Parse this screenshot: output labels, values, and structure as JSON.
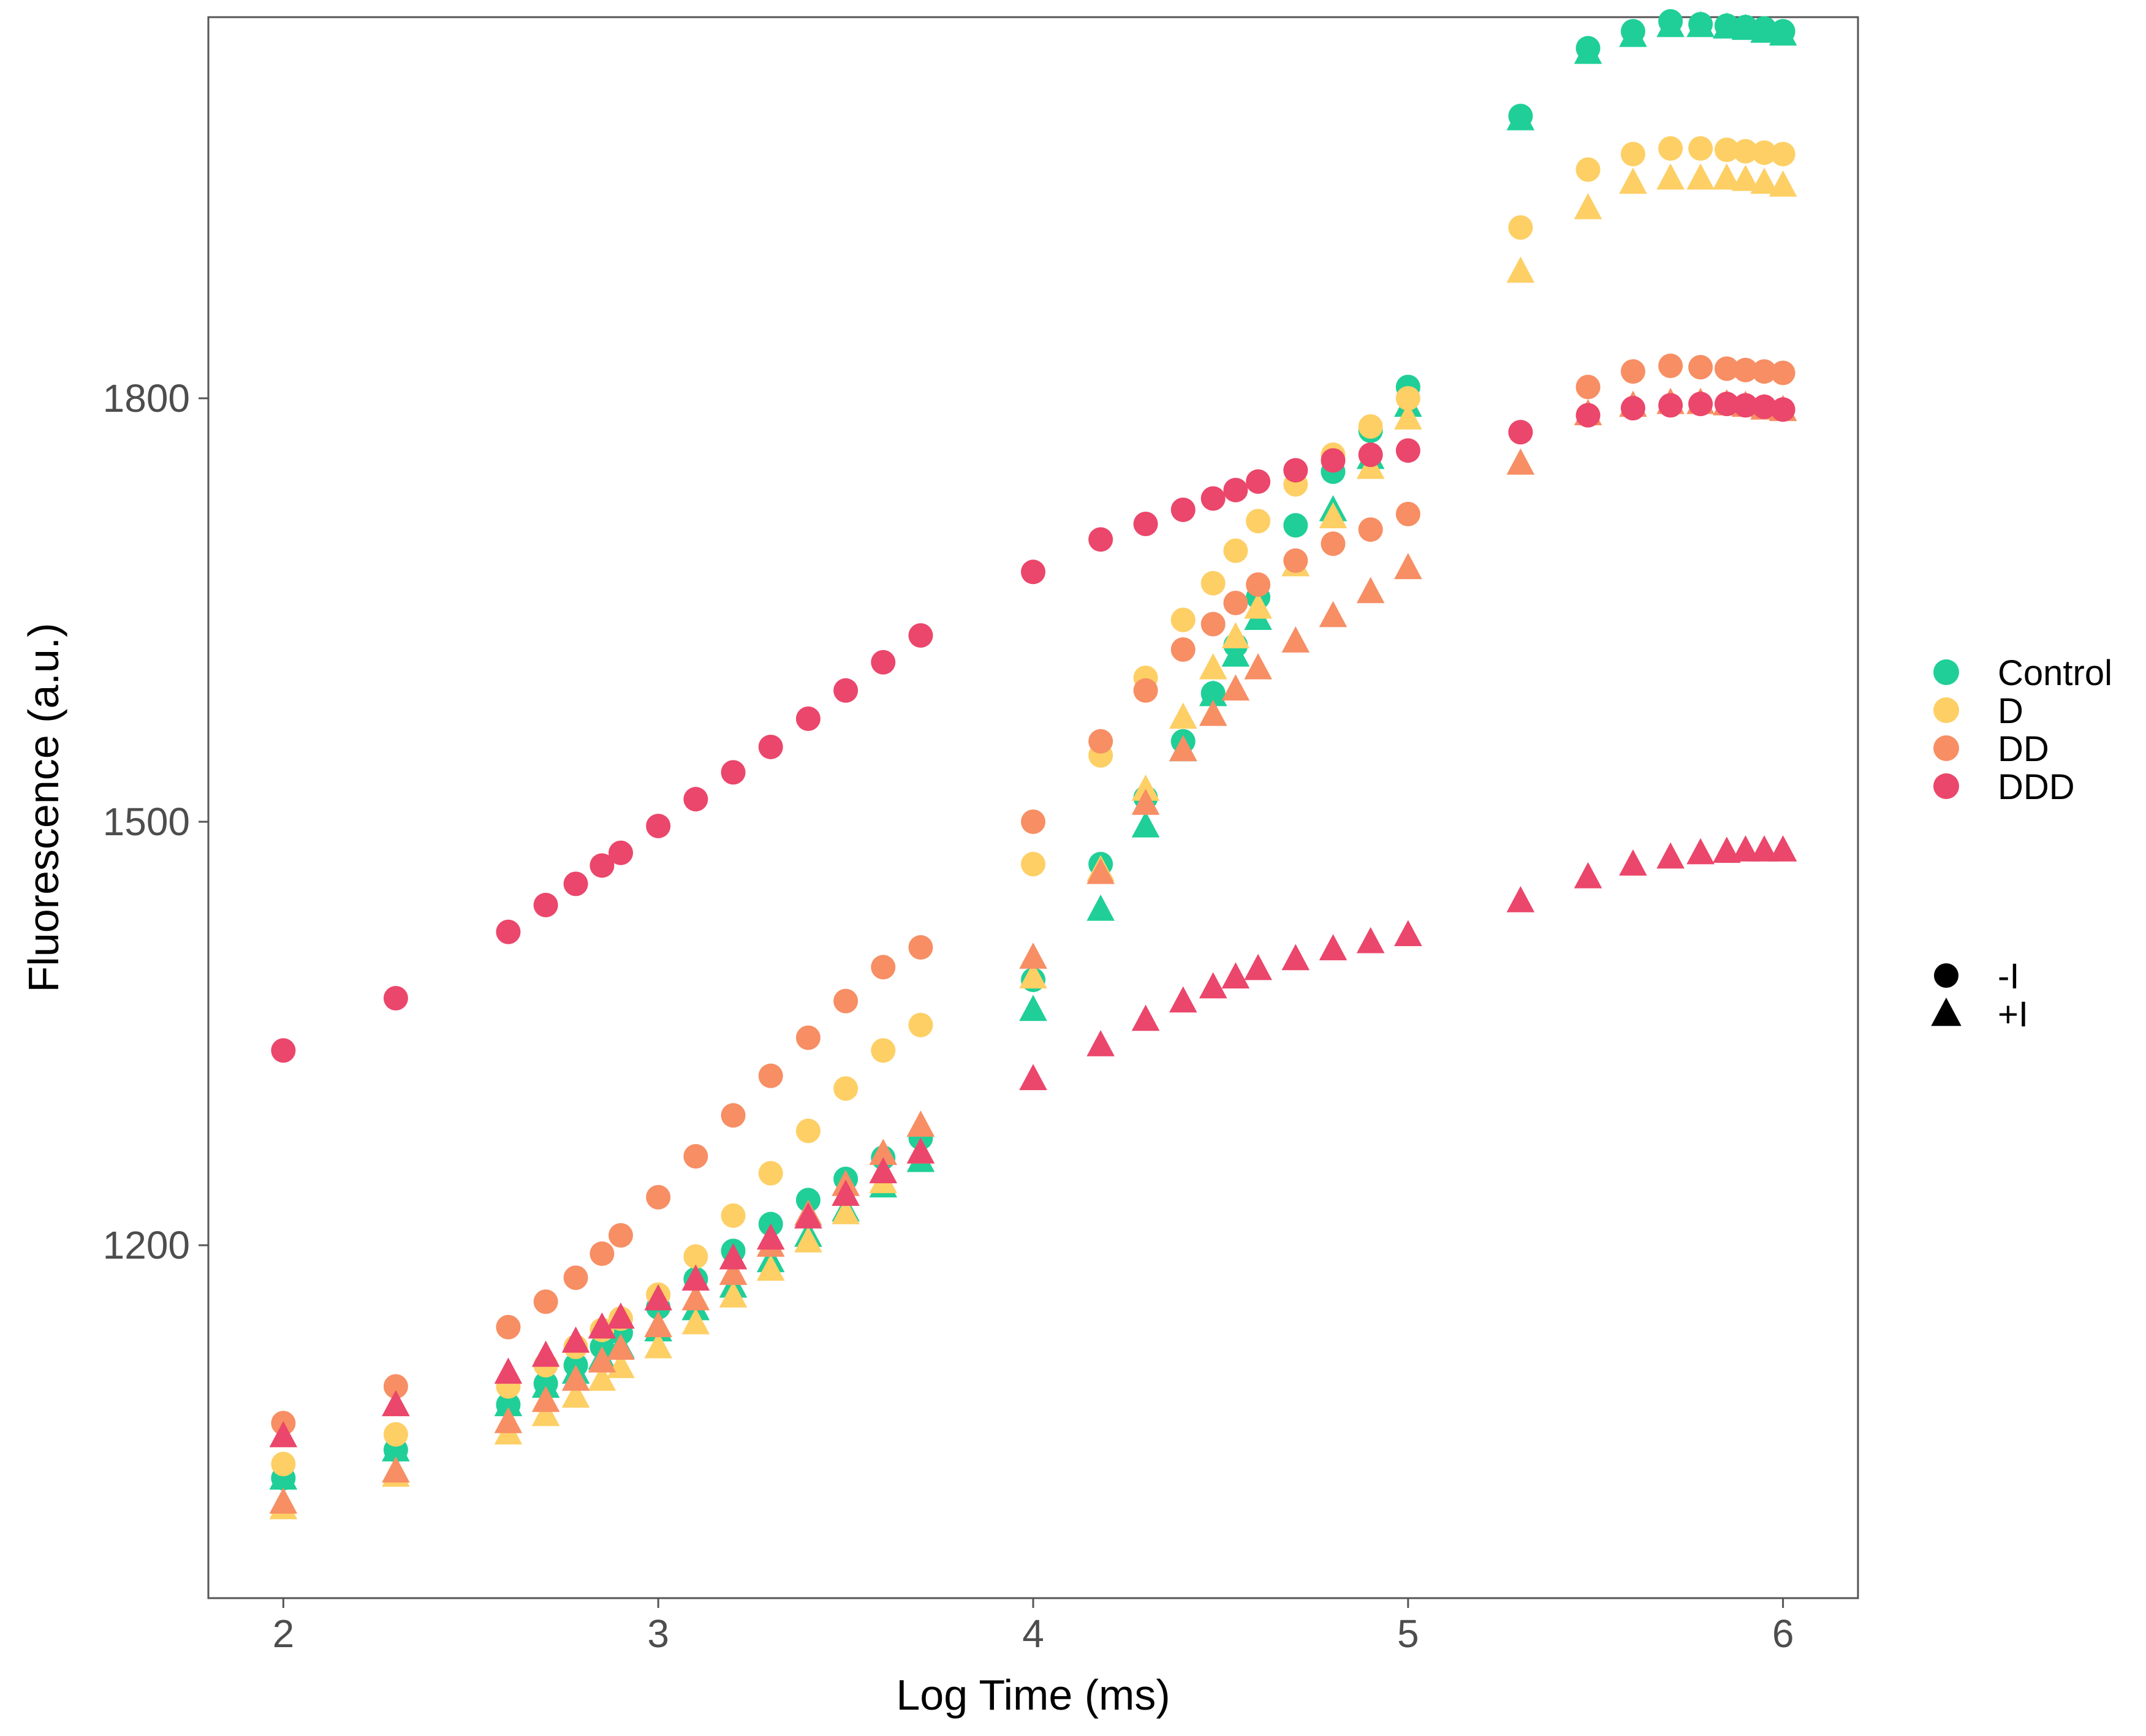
{
  "chart_data": {
    "type": "scatter",
    "title": "",
    "xlabel": "Log Time (ms)",
    "ylabel": "Fluorescence (a.u.)",
    "xlim": [
      1.8,
      6.2
    ],
    "ylim": [
      950,
      2070
    ],
    "x_ticks": [
      2,
      3,
      4,
      5,
      6
    ],
    "y_ticks": [
      1200,
      1500,
      1800
    ],
    "grid": false,
    "legend_position": "right",
    "colors": {
      "Control": "#1fcf97",
      "D": "#fdcf65",
      "DD": "#f78e64",
      "DDD": "#eb466b",
      "legend_shape": "#000000"
    },
    "color_legend": [
      "Control",
      "D",
      "DD",
      "DDD"
    ],
    "shape_legend": [
      {
        "label": "-I",
        "shape": "circle"
      },
      {
        "label": "+I",
        "shape": "triangle"
      }
    ],
    "series": [
      {
        "name": "Control",
        "treatment": "-I",
        "shape": "circle",
        "x": [
          2.0,
          2.3,
          2.6,
          2.7,
          2.78,
          2.85,
          2.9,
          3.0,
          3.1,
          3.2,
          3.3,
          3.4,
          3.5,
          3.6,
          3.7,
          4.0,
          4.18,
          4.3,
          4.4,
          4.48,
          4.54,
          4.6,
          4.7,
          4.8,
          4.9,
          5.0,
          5.3,
          5.48,
          5.6,
          5.7,
          5.78,
          5.85,
          5.9,
          5.95,
          6.0
        ],
        "y": [
          1035,
          1055,
          1087,
          1102,
          1115,
          1128,
          1138,
          1156,
          1176,
          1196,
          1215,
          1232,
          1247,
          1262,
          1276,
          1388,
          1470,
          1517,
          1557,
          1591,
          1625,
          1659,
          1710,
          1748,
          1777,
          1808,
          2000,
          2048,
          2060,
          2067,
          2065,
          2064,
          2063,
          2062,
          2060
        ]
      },
      {
        "name": "Control",
        "treatment": "+I",
        "shape": "triangle",
        "x": [
          2.0,
          2.3,
          2.6,
          2.7,
          2.78,
          2.85,
          2.9,
          3.0,
          3.1,
          3.2,
          3.3,
          3.4,
          3.5,
          3.6,
          3.7,
          4.0,
          4.18,
          4.3,
          4.4,
          4.48,
          4.54,
          4.6,
          4.7,
          4.8,
          4.9,
          5.0,
          5.3,
          5.48,
          5.6,
          5.7,
          5.78,
          5.85,
          5.9,
          5.95,
          6.0
        ],
        "y": [
          1035,
          1055,
          1087,
          1100,
          1110,
          1120,
          1128,
          1140,
          1155,
          1171,
          1189,
          1207,
          1225,
          1242,
          1260,
          1367,
          1438,
          1497,
          1551,
          1590,
          1618,
          1644,
          1682,
          1721,
          1758,
          1795,
          1998,
          2045,
          2057,
          2064,
          2064,
          2063,
          2062,
          2060,
          2058
        ]
      },
      {
        "name": "D",
        "treatment": "-I",
        "shape": "circle",
        "x": [
          2.0,
          2.3,
          2.6,
          2.7,
          2.78,
          2.85,
          2.9,
          3.0,
          3.1,
          3.2,
          3.3,
          3.4,
          3.5,
          3.6,
          3.7,
          4.0,
          4.18,
          4.3,
          4.4,
          4.48,
          4.54,
          4.6,
          4.7,
          4.8,
          4.9,
          5.0,
          5.3,
          5.48,
          5.6,
          5.7,
          5.78,
          5.85,
          5.9,
          5.95,
          6.0
        ],
        "y": [
          1045,
          1066,
          1100,
          1115,
          1128,
          1140,
          1148,
          1165,
          1192,
          1221,
          1251,
          1281,
          1311,
          1338,
          1356,
          1470,
          1547,
          1602,
          1643,
          1669,
          1692,
          1713,
          1739,
          1760,
          1780,
          1800,
          1921,
          1962,
          1973,
          1977,
          1977,
          1976,
          1975,
          1974,
          1973
        ]
      },
      {
        "name": "D",
        "treatment": "+I",
        "shape": "triangle",
        "x": [
          2.0,
          2.3,
          2.6,
          2.7,
          2.78,
          2.85,
          2.9,
          3.0,
          3.1,
          3.2,
          3.3,
          3.4,
          3.5,
          3.6,
          3.7,
          4.0,
          4.18,
          4.3,
          4.4,
          4.48,
          4.54,
          4.6,
          4.7,
          4.8,
          4.9,
          5.0,
          5.3,
          5.48,
          5.6,
          5.7,
          5.78,
          5.85,
          5.9,
          5.95,
          6.0
        ],
        "y": [
          1014,
          1037,
          1067,
          1080,
          1093,
          1105,
          1114,
          1128,
          1145,
          1164,
          1183,
          1203,
          1223,
          1245,
          1266,
          1390,
          1466,
          1523,
          1574,
          1609,
          1631,
          1652,
          1682,
          1716,
          1751,
          1786,
          1890,
          1935,
          1953,
          1956,
          1956,
          1956,
          1955,
          1953,
          1951
        ]
      },
      {
        "name": "DD",
        "treatment": "-I",
        "shape": "circle",
        "x": [
          2.0,
          2.3,
          2.6,
          2.7,
          2.78,
          2.85,
          2.9,
          3.0,
          3.1,
          3.2,
          3.3,
          3.4,
          3.5,
          3.6,
          3.7,
          4.0,
          4.18,
          4.3,
          4.4,
          4.48,
          4.54,
          4.6,
          4.7,
          4.8,
          4.9,
          5.0,
          5.3,
          5.48,
          5.6,
          5.7,
          5.78,
          5.85,
          5.9,
          5.95,
          6.0
        ],
        "y": [
          1074,
          1100,
          1142,
          1160,
          1177,
          1194,
          1207,
          1234,
          1263,
          1292,
          1320,
          1347,
          1373,
          1397,
          1411,
          1500,
          1557,
          1593,
          1622,
          1640,
          1655,
          1668,
          1685,
          1697,
          1707,
          1718,
          1776,
          1808,
          1819,
          1823,
          1822,
          1821,
          1820,
          1819,
          1818
        ]
      },
      {
        "name": "DD",
        "treatment": "+I",
        "shape": "triangle",
        "x": [
          2.0,
          2.3,
          2.6,
          2.7,
          2.78,
          2.85,
          2.9,
          3.0,
          3.1,
          3.2,
          3.3,
          3.4,
          3.5,
          3.6,
          3.7,
          4.0,
          4.18,
          4.3,
          4.4,
          4.48,
          4.54,
          4.6,
          4.7,
          4.8,
          4.9,
          5.0,
          5.3,
          5.48,
          5.6,
          5.7,
          5.78,
          5.85,
          5.9,
          5.95,
          6.0
        ],
        "y": [
          1018,
          1040,
          1075,
          1090,
          1105,
          1118,
          1127,
          1143,
          1162,
          1180,
          1200,
          1222,
          1243,
          1265,
          1285,
          1404,
          1464,
          1513,
          1551,
          1576,
          1594,
          1609,
          1628,
          1646,
          1663,
          1680,
          1754,
          1789,
          1795,
          1797,
          1797,
          1796,
          1795,
          1793,
          1792
        ]
      },
      {
        "name": "DDD",
        "treatment": "-I",
        "shape": "circle",
        "x": [
          2.0,
          2.3,
          2.6,
          2.7,
          2.78,
          2.85,
          2.9,
          3.0,
          3.1,
          3.2,
          3.3,
          3.4,
          3.5,
          3.6,
          3.7,
          4.0,
          4.18,
          4.3,
          4.4,
          4.48,
          4.54,
          4.6,
          4.7,
          4.8,
          4.9,
          5.0,
          5.3,
          5.48,
          5.6,
          5.7,
          5.78,
          5.85,
          5.9,
          5.95,
          6.0
        ],
        "y": [
          1338,
          1375,
          1422,
          1441,
          1456,
          1469,
          1478,
          1497,
          1516,
          1535,
          1553,
          1573,
          1593,
          1613,
          1632,
          1677,
          1700,
          1711,
          1721,
          1729,
          1735,
          1741,
          1749,
          1756,
          1760,
          1763,
          1776,
          1788,
          1793,
          1795,
          1796,
          1796,
          1795,
          1794,
          1792
        ]
      },
      {
        "name": "DDD",
        "treatment": "+I",
        "shape": "triangle",
        "x": [
          2.0,
          2.3,
          2.6,
          2.7,
          2.78,
          2.85,
          2.9,
          3.0,
          3.1,
          3.2,
          3.3,
          3.4,
          3.5,
          3.6,
          3.7,
          4.0,
          4.18,
          4.3,
          4.4,
          4.48,
          4.54,
          4.6,
          4.7,
          4.8,
          4.9,
          5.0,
          5.3,
          5.48,
          5.6,
          5.7,
          5.78,
          5.85,
          5.9,
          5.95,
          6.0
        ],
        "y": [
          1065,
          1087,
          1110,
          1122,
          1132,
          1142,
          1149,
          1162,
          1176,
          1191,
          1205,
          1220,
          1236,
          1252,
          1266,
          1318,
          1342,
          1360,
          1373,
          1383,
          1390,
          1396,
          1403,
          1410,
          1415,
          1420,
          1444,
          1461,
          1470,
          1475,
          1478,
          1479,
          1480,
          1480,
          1480
        ]
      }
    ]
  }
}
